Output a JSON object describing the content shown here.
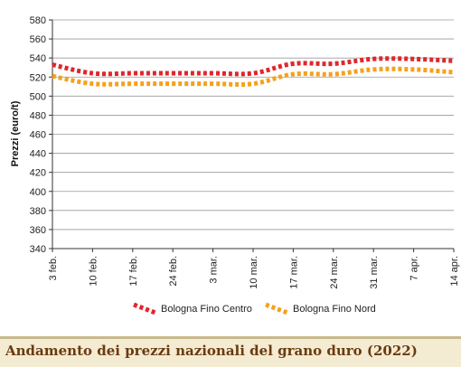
{
  "chart_data": {
    "type": "line",
    "title": "Andamento dei prezzi nazionali del grano duro (2022)",
    "xlabel": "",
    "ylabel": "Prezzi (euro/t)",
    "ylim": [
      340,
      580
    ],
    "yticks": [
      340,
      360,
      380,
      400,
      420,
      440,
      460,
      480,
      500,
      520,
      540,
      560,
      580
    ],
    "categories": [
      "3 feb.",
      "10 feb.",
      "17 feb.",
      "24 feb.",
      "3 mar.",
      "10 mar.",
      "17 mar.",
      "24 mar.",
      "31 mar.",
      "7 apr.",
      "14 apr."
    ],
    "grid": {
      "horizontal": true,
      "vertical": false
    },
    "legend": "bottom",
    "series": [
      {
        "name": "Bologna Fino Centro",
        "color": "#e0262c",
        "values": [
          533,
          524,
          524,
          524,
          524,
          524,
          534,
          534,
          539,
          539,
          537
        ]
      },
      {
        "name": "Bologna Fino Nord",
        "color": "#f5a11c",
        "values": [
          521,
          513,
          513,
          513,
          513,
          513,
          523,
          523,
          528,
          528,
          525
        ]
      }
    ]
  }
}
